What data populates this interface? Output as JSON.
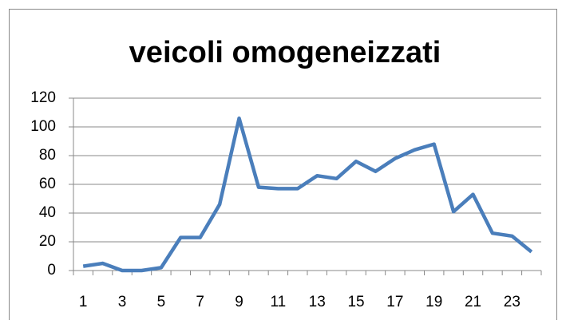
{
  "chart_data": {
    "type": "line",
    "title": "veicoli omogeneizzati",
    "categories": [
      1,
      null,
      3,
      null,
      5,
      null,
      7,
      null,
      9,
      null,
      11,
      null,
      13,
      null,
      15,
      null,
      17,
      null,
      19,
      null,
      21,
      null,
      23,
      null
    ],
    "values": [
      3,
      5,
      0,
      0,
      2,
      23,
      23,
      46,
      106,
      58,
      57,
      57,
      66,
      64,
      76,
      69,
      78,
      84,
      88,
      41,
      53,
      26,
      24,
      13
    ],
    "color": "#4a7ebb",
    "ylim": [
      0,
      120
    ],
    "yticks": [
      0,
      20,
      40,
      60,
      80,
      100,
      120
    ],
    "grid": true
  }
}
